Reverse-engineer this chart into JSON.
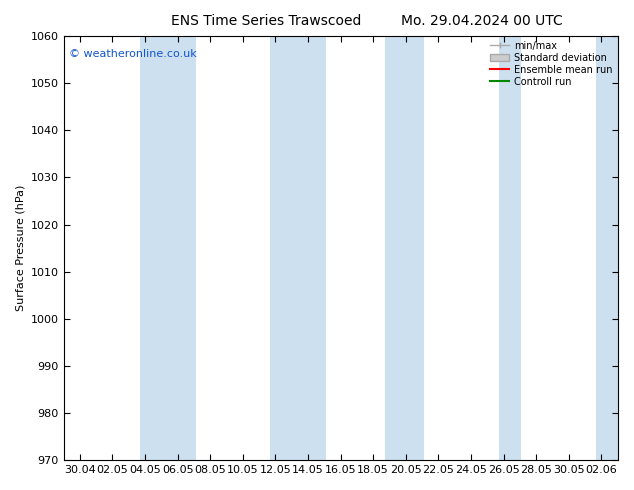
{
  "title_left": "ENS Time Series Trawscoed",
  "title_right": "Mo. 29.04.2024 00 UTC",
  "ylabel": "Surface Pressure (hPa)",
  "ylim": [
    970,
    1060
  ],
  "yticks": [
    970,
    980,
    990,
    1000,
    1010,
    1020,
    1030,
    1040,
    1050,
    1060
  ],
  "xtick_labels": [
    "30.04",
    "02.05",
    "04.05",
    "06.05",
    "08.05",
    "10.05",
    "12.05",
    "14.05",
    "16.05",
    "18.05",
    "20.05",
    "22.05",
    "24.05",
    "26.05",
    "28.05",
    "30.05",
    "02.06"
  ],
  "watermark": "© weatheronline.co.uk",
  "background_color": "#ffffff",
  "band_color": "#cce0f0",
  "band_alpha": 1.0,
  "legend_items": [
    {
      "label": "min/max",
      "color": "#aaaaaa",
      "lw": 1.0
    },
    {
      "label": "Standard deviation",
      "color": "#bbbbbb",
      "lw": 4
    },
    {
      "label": "Ensemble mean run",
      "color": "#ff0000",
      "lw": 1.5
    },
    {
      "label": "Controll run",
      "color": "#008800",
      "lw": 1.5
    }
  ],
  "figsize": [
    6.34,
    4.9
  ],
  "dpi": 100,
  "title_fontsize": 10,
  "axis_fontsize": 8,
  "watermark_fontsize": 8,
  "legend_fontsize": 7
}
